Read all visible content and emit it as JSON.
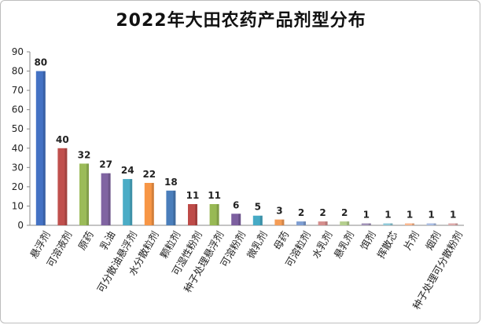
{
  "chart_data": {
    "type": "bar",
    "title": "2022年大田农药产品剂型分布",
    "categories": [
      "悬浮剂",
      "可溶液剂",
      "原药",
      "乳油",
      "可分散油悬浮剂",
      "水分散粒剂",
      "颗粒剂",
      "可湿性粉剂",
      "种子处理悬浮剂",
      "可溶粉剂",
      "微乳剂",
      "母药",
      "可溶粒剂",
      "水乳剂",
      "悬乳剂",
      "饵剂",
      "挥散芯",
      "片剂",
      "烟剂",
      "种子处理可分散粉剂"
    ],
    "values": [
      80,
      40,
      32,
      27,
      24,
      22,
      18,
      11,
      11,
      6,
      5,
      3,
      2,
      2,
      2,
      1,
      1,
      1,
      1,
      1
    ],
    "colors": [
      "#4472c4",
      "#c0504d",
      "#9bbb59",
      "#8064a2",
      "#4bacc6",
      "#f79646",
      "#4a7ebb",
      "#be4b48",
      "#98b954",
      "#7d60a0",
      "#46aac5",
      "#f59d56",
      "#7f9fd3",
      "#d58e8d",
      "#b5cf8e",
      "#a192b7",
      "#8ec8d8",
      "#fab78e",
      "#a9bde3",
      "#ddaaaa"
    ],
    "yticks": [
      0,
      10,
      20,
      30,
      40,
      50,
      60,
      70,
      80,
      90
    ],
    "ylim": [
      0,
      90
    ],
    "grid": false,
    "legend": "none"
  }
}
